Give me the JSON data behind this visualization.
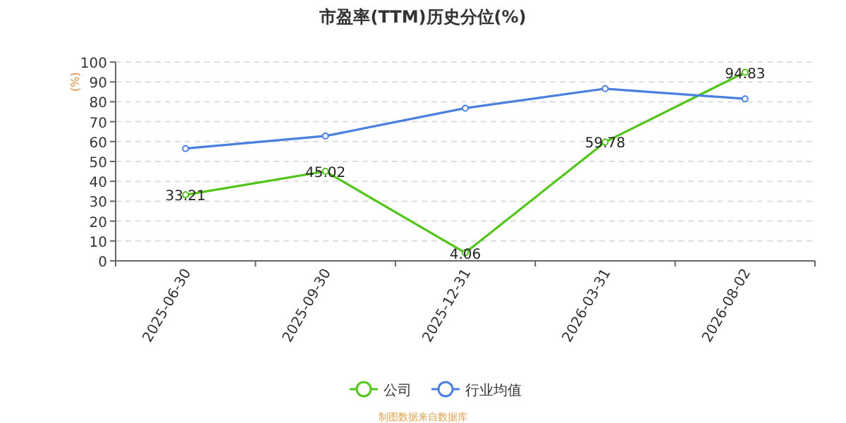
{
  "chart_data": {
    "type": "line",
    "title": "市盈率(TTM)历史分位(%)",
    "ylabel": "(%)",
    "categories": [
      "2025-06-30",
      "2025-09-30",
      "2025-12-31",
      "2026-03-31",
      "2026-08-02"
    ],
    "series": [
      {
        "name": "公司",
        "color": "#52c41a",
        "values": [
          33.21,
          45.02,
          4.06,
          59.78,
          94.83
        ],
        "value_labels": [
          "33.21",
          "45.02",
          "4.06",
          "59.78",
          "94.83"
        ]
      },
      {
        "name": "行业均值",
        "color": "#4a7fe0",
        "values": [
          56.5,
          62.8,
          76.8,
          86.6,
          81.5
        ]
      }
    ],
    "ylim": [
      0,
      100
    ],
    "yticks": [
      0,
      10,
      20,
      30,
      40,
      50,
      60,
      70,
      80,
      90,
      100
    ],
    "grid": "y",
    "legend": "bottom",
    "marker": "circle",
    "line_style": "solid",
    "annotations": [
      "制图数据来自数据库"
    ]
  }
}
